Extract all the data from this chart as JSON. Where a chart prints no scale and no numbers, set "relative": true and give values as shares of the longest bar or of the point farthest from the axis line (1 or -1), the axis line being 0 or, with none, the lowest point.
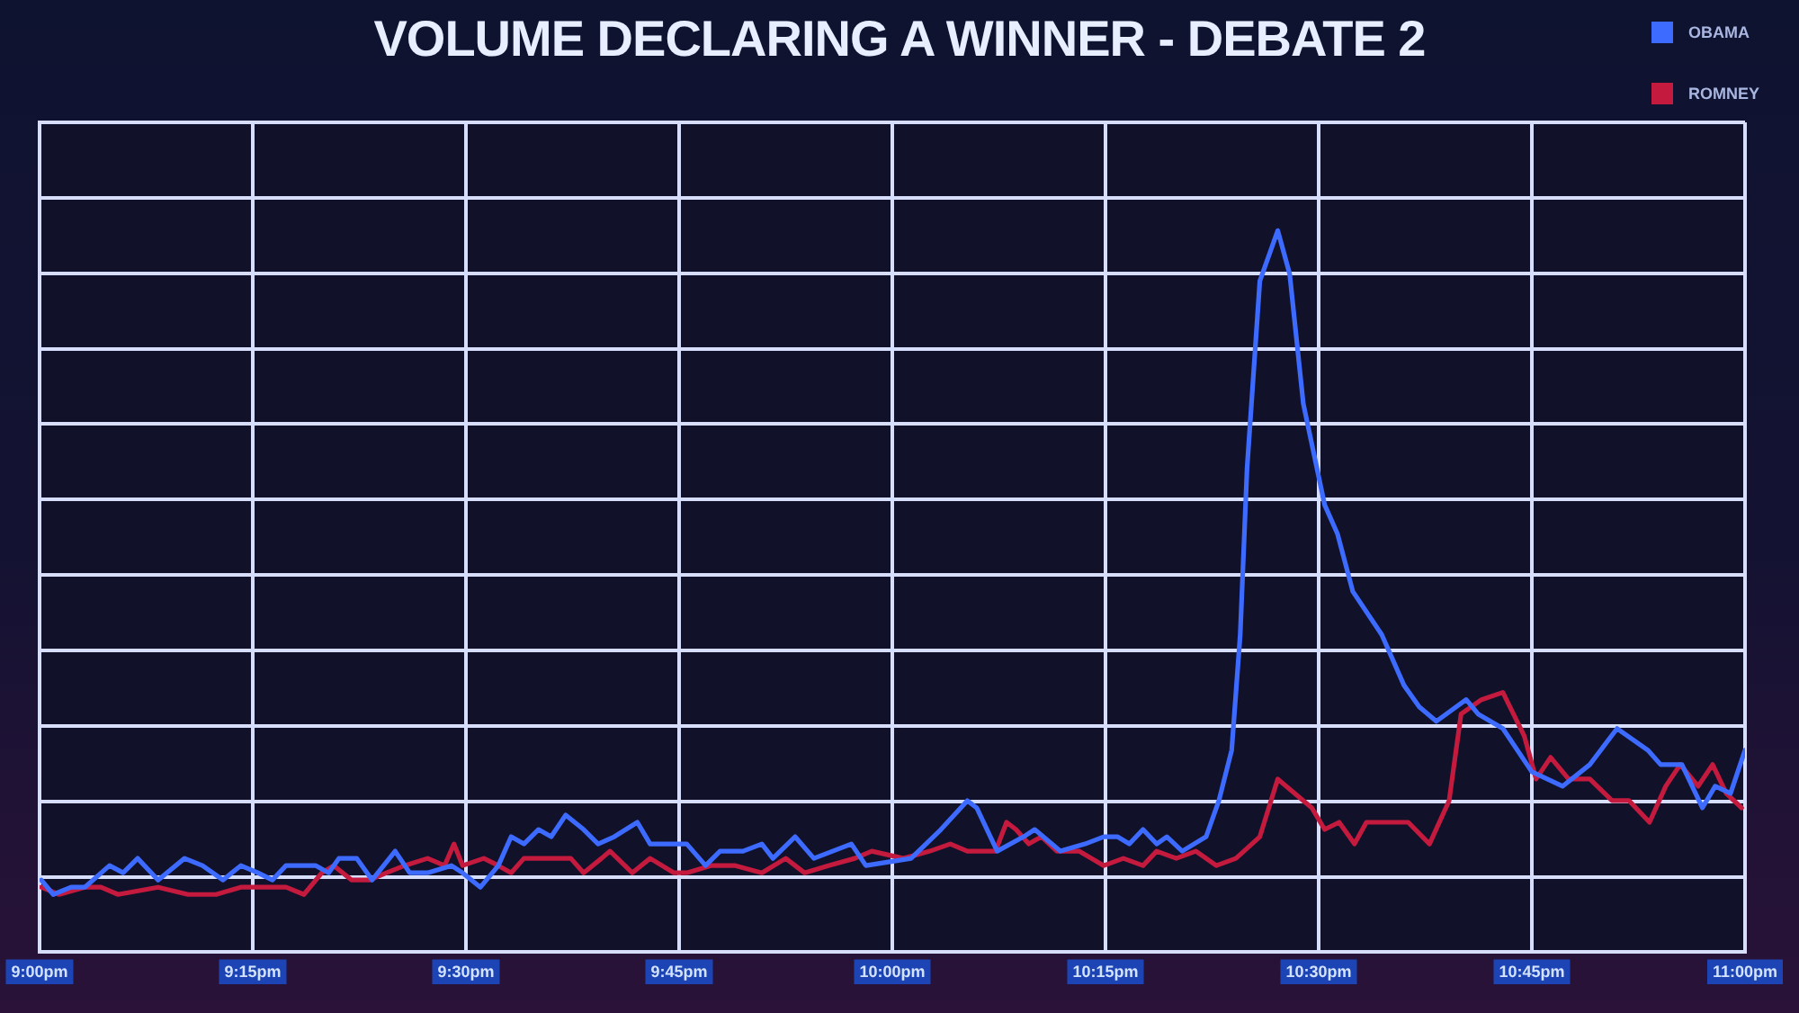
{
  "chart_data": {
    "type": "line",
    "title": "VOLUME DECLARING A WINNER - DEBATE 2",
    "relative": true,
    "xlim": [
      21,
      23
    ],
    "xticks": [
      {
        "value": 21,
        "label": "9:00pm"
      },
      {
        "value": 21.25,
        "label": "9:15pm"
      },
      {
        "value": 21.5,
        "label": "9:30pm"
      },
      {
        "value": 21.75,
        "label": "9:45pm"
      },
      {
        "value": 22,
        "label": "10:00pm"
      },
      {
        "value": 22.25,
        "label": "10:15pm"
      },
      {
        "value": 22.5,
        "label": "10:30pm"
      },
      {
        "value": 22.75,
        "label": "10:45pm"
      },
      {
        "value": 23,
        "label": "11:00pm"
      }
    ],
    "grid": true,
    "legend": "top right",
    "marker": "none",
    "series": [
      {
        "name": "OBAMA",
        "color": "#3d6bff",
        "x": [
          21.002,
          21.016,
          21.037,
          21.053,
          21.082,
          21.098,
          21.115,
          21.139,
          21.17,
          21.191,
          21.215,
          21.236,
          21.256,
          21.273,
          21.289,
          21.308,
          21.324,
          21.339,
          21.351,
          21.372,
          21.39,
          21.417,
          21.434,
          21.455,
          21.483,
          21.496,
          21.517,
          21.538,
          21.553,
          21.568,
          21.585,
          21.6,
          21.617,
          21.638,
          21.655,
          21.674,
          21.701,
          21.716,
          21.737,
          21.759,
          21.781,
          21.798,
          21.825,
          21.847,
          21.86,
          21.886,
          21.908,
          21.93,
          21.952,
          21.969,
          22.022,
          22.057,
          22.088,
          22.099,
          22.123,
          22.154,
          22.167,
          22.197,
          22.226,
          22.248,
          22.264,
          22.278,
          22.294,
          22.31,
          22.322,
          22.34,
          22.368,
          22.383,
          22.398,
          22.408,
          22.416,
          22.431,
          22.452,
          22.466,
          22.482,
          22.507,
          22.522,
          22.54,
          22.574,
          22.6,
          22.618,
          22.638,
          22.673,
          22.687,
          22.716,
          22.75,
          22.786,
          22.818,
          22.85,
          22.886,
          22.901,
          22.926,
          22.95,
          22.965,
          22.983,
          23.0
        ],
        "values": [
          0.1,
          0.08,
          0.09,
          0.09,
          0.12,
          0.11,
          0.13,
          0.1,
          0.13,
          0.12,
          0.1,
          0.12,
          0.11,
          0.1,
          0.12,
          0.12,
          0.12,
          0.11,
          0.13,
          0.13,
          0.1,
          0.14,
          0.11,
          0.11,
          0.12,
          0.11,
          0.09,
          0.12,
          0.16,
          0.15,
          0.17,
          0.16,
          0.19,
          0.17,
          0.15,
          0.16,
          0.18,
          0.15,
          0.15,
          0.15,
          0.12,
          0.14,
          0.14,
          0.15,
          0.13,
          0.16,
          0.13,
          0.14,
          0.15,
          0.12,
          0.13,
          0.17,
          0.21,
          0.2,
          0.14,
          0.16,
          0.17,
          0.14,
          0.15,
          0.16,
          0.16,
          0.15,
          0.17,
          0.15,
          0.16,
          0.14,
          0.16,
          0.21,
          0.28,
          0.44,
          0.67,
          0.93,
          1.0,
          0.94,
          0.76,
          0.62,
          0.58,
          0.5,
          0.44,
          0.37,
          0.34,
          0.32,
          0.35,
          0.33,
          0.31,
          0.25,
          0.23,
          0.26,
          0.31,
          0.28,
          0.26,
          0.26,
          0.2,
          0.23,
          0.22,
          0.28
        ]
      },
      {
        "name": "ROMNEY",
        "color": "#c41a3e",
        "x": [
          21.002,
          21.023,
          21.053,
          21.072,
          21.092,
          21.139,
          21.174,
          21.207,
          21.236,
          21.262,
          21.289,
          21.31,
          21.331,
          21.345,
          21.366,
          21.387,
          21.407,
          21.428,
          21.455,
          21.475,
          21.486,
          21.496,
          21.521,
          21.538,
          21.553,
          21.568,
          21.595,
          21.623,
          21.638,
          21.659,
          21.669,
          21.695,
          21.716,
          21.744,
          21.759,
          21.787,
          21.816,
          21.847,
          21.875,
          21.897,
          21.925,
          21.956,
          21.976,
          22.013,
          22.044,
          22.068,
          22.088,
          22.121,
          22.134,
          22.145,
          22.16,
          22.175,
          22.193,
          22.219,
          22.248,
          22.271,
          22.294,
          22.31,
          22.333,
          22.356,
          22.38,
          22.403,
          22.431,
          22.452,
          22.492,
          22.507,
          22.524,
          22.542,
          22.556,
          22.58,
          22.605,
          22.63,
          22.653,
          22.667,
          22.691,
          22.716,
          22.741,
          22.755,
          22.772,
          22.793,
          22.818,
          22.844,
          22.864,
          22.888,
          22.907,
          22.924,
          22.945,
          22.962,
          22.978,
          22.996
        ],
        "values": [
          0.09,
          0.08,
          0.09,
          0.09,
          0.08,
          0.09,
          0.08,
          0.08,
          0.09,
          0.09,
          0.09,
          0.08,
          0.11,
          0.12,
          0.1,
          0.1,
          0.11,
          0.12,
          0.13,
          0.12,
          0.15,
          0.12,
          0.13,
          0.12,
          0.11,
          0.13,
          0.13,
          0.13,
          0.11,
          0.13,
          0.14,
          0.11,
          0.13,
          0.11,
          0.11,
          0.12,
          0.12,
          0.11,
          0.13,
          0.11,
          0.12,
          0.13,
          0.14,
          0.13,
          0.14,
          0.15,
          0.14,
          0.14,
          0.18,
          0.17,
          0.15,
          0.16,
          0.14,
          0.14,
          0.12,
          0.13,
          0.12,
          0.14,
          0.13,
          0.14,
          0.12,
          0.13,
          0.16,
          0.24,
          0.2,
          0.17,
          0.18,
          0.15,
          0.18,
          0.18,
          0.18,
          0.15,
          0.21,
          0.33,
          0.35,
          0.36,
          0.3,
          0.24,
          0.27,
          0.24,
          0.24,
          0.21,
          0.21,
          0.18,
          0.23,
          0.26,
          0.23,
          0.26,
          0.22,
          0.2
        ]
      }
    ]
  }
}
